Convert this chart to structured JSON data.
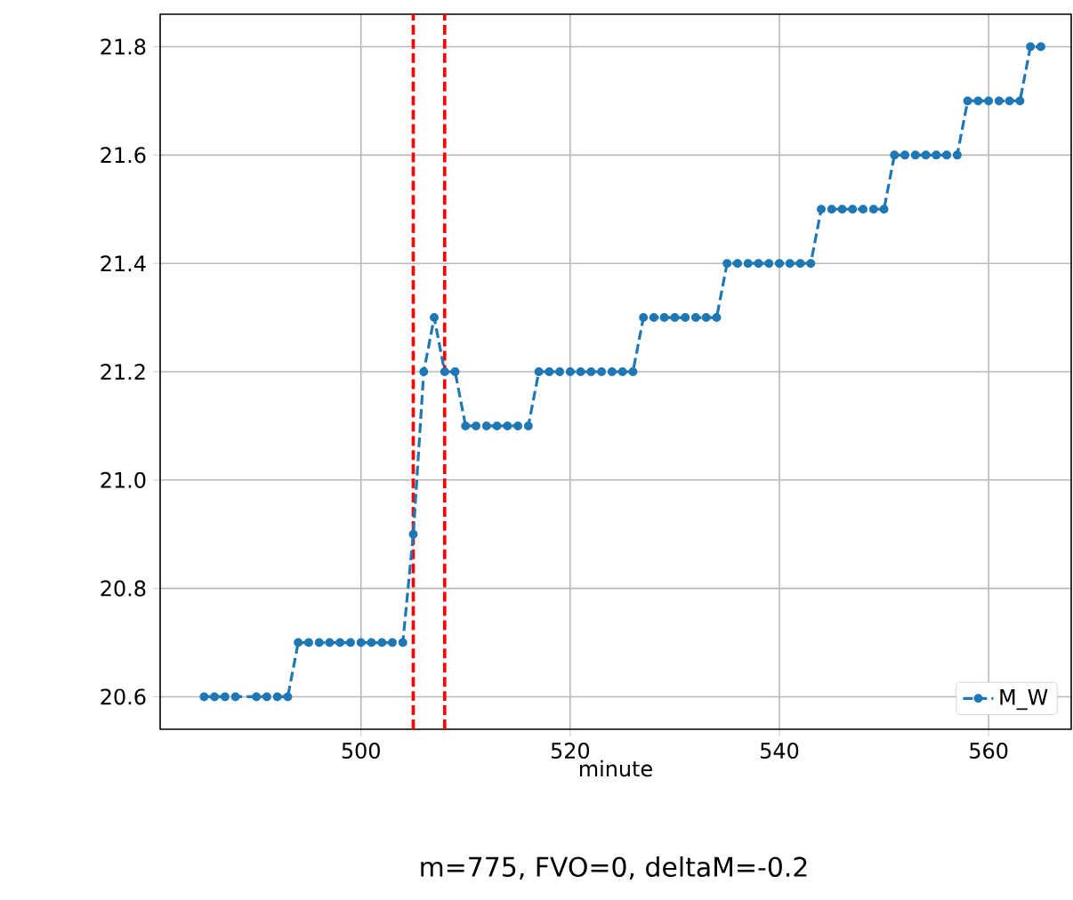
{
  "chart_data": {
    "type": "line",
    "xlabel": "minute",
    "annotations": [
      "m=775, FVO=0, deltaM=-0.2"
    ],
    "series": [
      {
        "name": "M_W",
        "color": "#1f77b4",
        "x": [
          485,
          486,
          487,
          488,
          490,
          491,
          492,
          493,
          494,
          495,
          496,
          497,
          498,
          499,
          500,
          501,
          502,
          503,
          504,
          505,
          506,
          507,
          508,
          509,
          510,
          511,
          512,
          513,
          514,
          515,
          516,
          517,
          518,
          519,
          520,
          521,
          522,
          523,
          524,
          525,
          526,
          527,
          528,
          529,
          530,
          531,
          532,
          533,
          534,
          535,
          536,
          537,
          538,
          539,
          540,
          541,
          542,
          543,
          544,
          545,
          546,
          547,
          548,
          549,
          550,
          551,
          552,
          553,
          554,
          555,
          556,
          557,
          558,
          559,
          560,
          561,
          562,
          563,
          564,
          565
        ],
        "values": [
          20.6,
          20.6,
          20.6,
          20.6,
          20.6,
          20.6,
          20.6,
          20.6,
          20.7,
          20.7,
          20.7,
          20.7,
          20.7,
          20.7,
          20.7,
          20.7,
          20.7,
          20.7,
          20.7,
          20.9,
          21.2,
          21.3,
          21.2,
          21.2,
          21.1,
          21.1,
          21.1,
          21.1,
          21.1,
          21.1,
          21.1,
          21.2,
          21.2,
          21.2,
          21.2,
          21.2,
          21.2,
          21.2,
          21.2,
          21.2,
          21.2,
          21.3,
          21.3,
          21.3,
          21.3,
          21.3,
          21.3,
          21.3,
          21.3,
          21.4,
          21.4,
          21.4,
          21.4,
          21.4,
          21.4,
          21.4,
          21.4,
          21.4,
          21.5,
          21.5,
          21.5,
          21.5,
          21.5,
          21.5,
          21.5,
          21.6,
          21.6,
          21.6,
          21.6,
          21.6,
          21.6,
          21.6,
          21.7,
          21.7,
          21.7,
          21.7,
          21.7,
          21.7,
          21.8,
          21.8
        ]
      }
    ],
    "xlim": [
      480.8,
      567.9
    ],
    "ylim": [
      20.54,
      21.86
    ],
    "xticks": [
      500,
      520,
      540,
      560
    ],
    "yticks": [
      {
        "value": 20.6,
        "label": "20.6"
      },
      {
        "value": 20.8,
        "label": "20.8"
      },
      {
        "value": 21,
        "label": "21.0"
      },
      {
        "value": 21.2,
        "label": "21.2"
      },
      {
        "value": 21.4,
        "label": "21.4"
      },
      {
        "value": 21.6,
        "label": "21.6"
      },
      {
        "value": 21.8,
        "label": "21.8"
      }
    ],
    "ref_lines": [
      {
        "axis": "x",
        "value": 505,
        "color": "#ff0000",
        "line_style": "dashed"
      },
      {
        "axis": "x",
        "value": 508,
        "color": "#ff0000",
        "line_style": "dashed"
      }
    ],
    "grid": true,
    "legend": "bottom right",
    "marker": "circle",
    "line_style": "dashed"
  }
}
